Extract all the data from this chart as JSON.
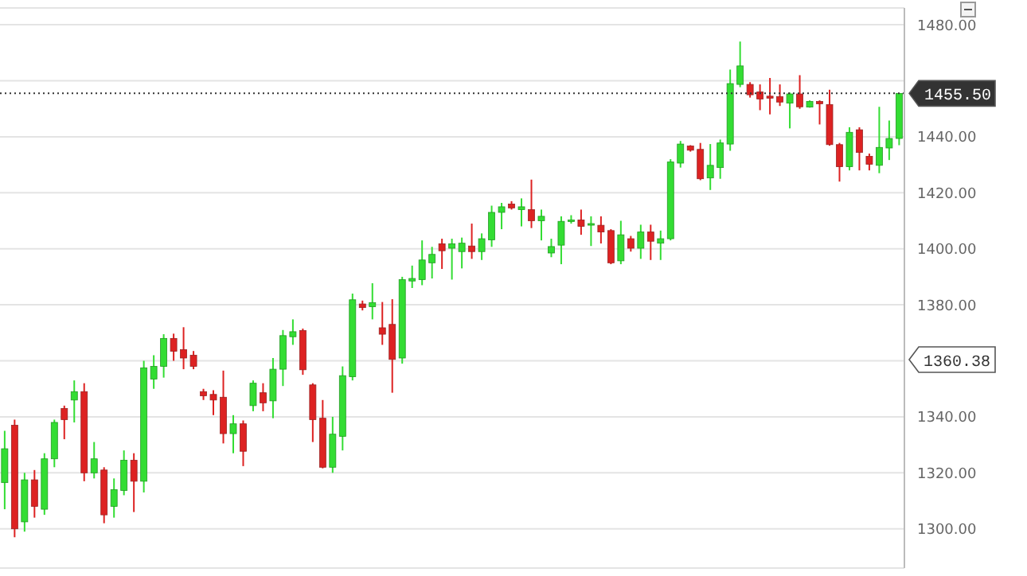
{
  "chart_data": {
    "type": "candlestick",
    "categories": [
      null,
      null,
      null,
      null,
      null,
      null,
      null,
      null,
      null,
      null,
      null,
      null,
      null,
      null,
      null,
      null,
      null,
      null,
      null,
      null,
      null,
      null,
      null,
      null,
      null,
      null,
      null,
      null,
      null,
      null,
      null,
      null,
      null,
      null,
      null,
      null,
      null,
      null,
      null,
      null,
      null,
      null,
      null,
      null,
      null,
      null,
      null,
      null,
      null,
      null,
      null,
      null,
      null,
      null,
      null,
      null,
      null,
      null,
      null,
      null,
      null,
      null,
      null,
      null,
      null,
      null,
      null,
      null,
      null,
      null,
      null,
      null,
      null,
      null,
      null,
      null,
      null,
      null,
      null,
      null,
      null,
      null,
      null,
      null,
      null,
      null,
      null,
      null,
      null,
      null,
      null
    ],
    "ohlc": [
      [
        1316.5,
        1335,
        1307,
        1328.6
      ],
      [
        1337,
        1339,
        1297,
        1300
      ],
      [
        1302.5,
        1320,
        1299,
        1317.5
      ],
      [
        1317.5,
        1321,
        1304,
        1308
      ],
      [
        1307,
        1327,
        1305,
        1325
      ],
      [
        1325,
        1339,
        1322,
        1338
      ],
      [
        1343,
        1344,
        1332,
        1339
      ],
      [
        1346,
        1353,
        1338,
        1349
      ],
      [
        1349,
        1352,
        1317,
        1320
      ],
      [
        1320,
        1331,
        1318,
        1325
      ],
      [
        1321,
        1322,
        1302,
        1305
      ],
      [
        1308,
        1318,
        1304,
        1314
      ],
      [
        1313.7,
        1328,
        1312,
        1324.5
      ],
      [
        1324.5,
        1327,
        1306,
        1317
      ],
      [
        1317,
        1360,
        1313,
        1357.5
      ],
      [
        1353.5,
        1362,
        1350,
        1358
      ],
      [
        1358,
        1369.5,
        1354,
        1368
      ],
      [
        1368,
        1369.7,
        1360,
        1363.4
      ],
      [
        1364,
        1372,
        1357,
        1361
      ],
      [
        1362,
        1363.5,
        1357,
        1358
      ],
      [
        1349,
        1350,
        1346,
        1347.5
      ],
      [
        1348,
        1349.5,
        1340.6,
        1346
      ],
      [
        1347,
        1356.5,
        1330.5,
        1334
      ],
      [
        1334,
        1340.6,
        1327,
        1337.5
      ],
      [
        1337.5,
        1338.7,
        1322.4,
        1327.7
      ],
      [
        1344,
        1353,
        1342,
        1352
      ],
      [
        1348.6,
        1352,
        1342,
        1345
      ],
      [
        1345.7,
        1361,
        1339.5,
        1357
      ],
      [
        1357,
        1371,
        1351,
        1369
      ],
      [
        1368.6,
        1374.8,
        1365.7,
        1370.4
      ],
      [
        1370.8,
        1371.5,
        1355,
        1356.8
      ],
      [
        1351.4,
        1352,
        1331,
        1339
      ],
      [
        1339.5,
        1346,
        1321.6,
        1322
      ],
      [
        1322,
        1340,
        1320,
        1333.8
      ],
      [
        1333,
        1358,
        1328,
        1354.7
      ],
      [
        1354.3,
        1384,
        1353,
        1381.8
      ],
      [
        1380.3,
        1381.5,
        1378,
        1379
      ],
      [
        1379.3,
        1387.7,
        1374.8,
        1380.8
      ],
      [
        1371.8,
        1381,
        1365.7,
        1369.5
      ],
      [
        1373,
        1382,
        1348.6,
        1360.5
      ],
      [
        1361,
        1390,
        1359,
        1389
      ],
      [
        1388.5,
        1394,
        1386,
        1389.4
      ],
      [
        1389,
        1403,
        1387,
        1396
      ],
      [
        1395,
        1400.7,
        1389.4,
        1398
      ],
      [
        1401.8,
        1403.6,
        1392.8,
        1399.3
      ],
      [
        1400.2,
        1403.6,
        1389,
        1401.8
      ],
      [
        1399,
        1404,
        1393,
        1402
      ],
      [
        1401,
        1409,
        1396.4,
        1399
      ],
      [
        1399,
        1405.5,
        1396,
        1403.6
      ],
      [
        1403.2,
        1415.4,
        1400.7,
        1413
      ],
      [
        1413,
        1416.4,
        1407,
        1415
      ],
      [
        1416,
        1417,
        1414,
        1414.6
      ],
      [
        1414,
        1418,
        1408,
        1415
      ],
      [
        1414,
        1424.7,
        1407.4,
        1410
      ],
      [
        1410,
        1414,
        1403,
        1411.6
      ],
      [
        1398.5,
        1403.6,
        1397,
        1400.8
      ],
      [
        1401.3,
        1411.6,
        1394.5,
        1409.8
      ],
      [
        1409.8,
        1412,
        1409,
        1410.3
      ],
      [
        1410.3,
        1414,
        1405,
        1408
      ],
      [
        1408.6,
        1411.6,
        1401,
        1409
      ],
      [
        1408.4,
        1411.6,
        1401.9,
        1406
      ],
      [
        1406.5,
        1407,
        1394.5,
        1395
      ],
      [
        1395.7,
        1410,
        1394.5,
        1405
      ],
      [
        1403.6,
        1404.6,
        1399,
        1400.2
      ],
      [
        1400.2,
        1408.6,
        1396.4,
        1406
      ],
      [
        1406,
        1408.6,
        1396,
        1402.7
      ],
      [
        1402,
        1406.5,
        1396,
        1403.6
      ],
      [
        1403.6,
        1432,
        1403,
        1431
      ],
      [
        1430.6,
        1438.5,
        1429,
        1437.4
      ],
      [
        1436.7,
        1437,
        1434.7,
        1435.2
      ],
      [
        1435.5,
        1437.8,
        1424.5,
        1425
      ],
      [
        1425.3,
        1437.4,
        1421,
        1429.8
      ],
      [
        1429,
        1439,
        1425,
        1437.8
      ],
      [
        1437.4,
        1464,
        1435,
        1459
      ],
      [
        1458.7,
        1474,
        1457.7,
        1465.3
      ],
      [
        1458.7,
        1459.5,
        1454,
        1455
      ],
      [
        1456,
        1458.7,
        1449.5,
        1453.5
      ],
      [
        1454.5,
        1461,
        1448,
        1453.8
      ],
      [
        1454.3,
        1458.7,
        1451,
        1452.4
      ],
      [
        1452,
        1455.8,
        1443,
        1455.3
      ],
      [
        1455.3,
        1462,
        1450,
        1450.7
      ],
      [
        1450.6,
        1453,
        1450.4,
        1452.6
      ],
      [
        1452.6,
        1453,
        1444.4,
        1451.8
      ],
      [
        1451.5,
        1456.8,
        1436.8,
        1437.2
      ],
      [
        1437.2,
        1437.8,
        1424,
        1429.3
      ],
      [
        1429.3,
        1443.4,
        1428,
        1441.6
      ],
      [
        1442.5,
        1443.4,
        1428,
        1434.4
      ],
      [
        1433,
        1434,
        1428,
        1430.2
      ],
      [
        1429.8,
        1450.7,
        1427,
        1436.2
      ],
      [
        1436,
        1445.8,
        1431.7,
        1439.4
      ],
      [
        1439.4,
        1455.5,
        1437,
        1455.5
      ]
    ],
    "colors": [
      "#33dd33",
      "#dd2222",
      "#33dd33",
      "#dd2222",
      "#33dd33",
      "#33dd33",
      "#dd2222",
      "#33dd33",
      "#dd2222",
      "#33dd33",
      "#dd2222",
      "#33dd33",
      "#33dd33",
      "#dd2222",
      "#33dd33",
      "#33dd33",
      "#33dd33",
      "#dd2222",
      "#dd2222",
      "#dd2222",
      "#dd2222",
      "#dd2222",
      "#dd2222",
      "#33dd33",
      "#dd2222",
      "#33dd33",
      "#dd2222",
      "#33dd33",
      "#33dd33",
      "#33dd33",
      "#dd2222",
      "#dd2222",
      "#dd2222",
      "#33dd33",
      "#33dd33",
      "#33dd33",
      "#dd2222",
      "#33dd33",
      "#dd2222",
      "#dd2222",
      "#33dd33",
      "#33dd33",
      "#33dd33",
      "#33dd33",
      "#dd2222",
      "#33dd33",
      "#33dd33",
      "#dd2222",
      "#33dd33",
      "#33dd33",
      "#33dd33",
      "#dd2222",
      "#33dd33",
      "#dd2222",
      "#33dd33",
      "#33dd33",
      "#33dd33",
      "#33dd33",
      "#dd2222",
      "#33dd33",
      "#dd2222",
      "#dd2222",
      "#33dd33",
      "#dd2222",
      "#33dd33",
      "#dd2222",
      "#33dd33",
      "#33dd33",
      "#33dd33",
      "#dd2222",
      "#dd2222",
      "#33dd33",
      "#33dd33",
      "#33dd33",
      "#33dd33",
      "#dd2222",
      "#dd2222",
      "#dd2222",
      "#dd2222",
      "#33dd33",
      "#dd2222",
      "#33dd33",
      "#dd2222",
      "#dd2222",
      "#dd2222",
      "#33dd33",
      "#dd2222",
      "#dd2222",
      "#33dd33",
      "#33dd33",
      "#33dd33"
    ],
    "ylim": [
      1286,
      1486
    ],
    "yticks": [
      {
        "value": 1300,
        "label": "1300.00"
      },
      {
        "value": 1320,
        "label": "1320.00"
      },
      {
        "value": 1340,
        "label": "1340.00"
      },
      {
        "value": 1360,
        "label": null
      },
      {
        "value": 1380,
        "label": "1380.00"
      },
      {
        "value": 1400,
        "label": "1400.00"
      },
      {
        "value": 1420,
        "label": "1420.00"
      },
      {
        "value": 1440,
        "label": "1440.00"
      },
      {
        "value": 1460,
        "label": null
      },
      {
        "value": 1480,
        "label": "1480.00"
      }
    ],
    "grid": "y",
    "tick_labels": "y",
    "ref_lines": [
      {
        "axis": "y",
        "value": 1455.5,
        "label": "1455.50",
        "color": "#333333",
        "line_style": "dotted"
      }
    ],
    "annotations": [
      "1360.38"
    ]
  }
}
